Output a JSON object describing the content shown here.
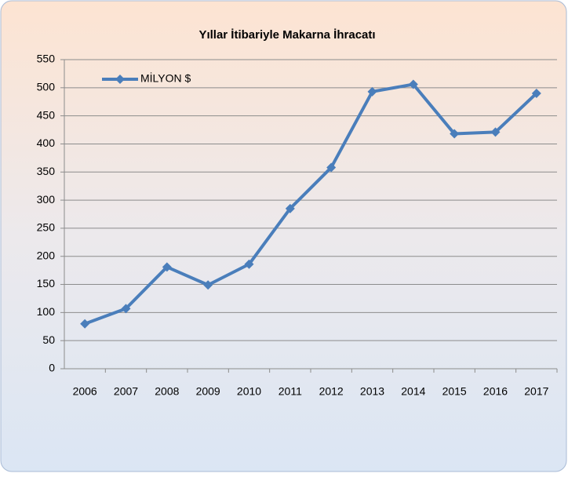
{
  "chart_data": {
    "type": "line",
    "title": "Yıllar İtibariyle Makarna İhracatı",
    "categories": [
      "2006",
      "2007",
      "2008",
      "2009",
      "2010",
      "2011",
      "2012",
      "2013",
      "2014",
      "2015",
      "2016",
      "2017"
    ],
    "series": [
      {
        "name": "MİLYON $",
        "color": "#4a7ebb",
        "values": [
          80,
          107,
          181,
          149,
          186,
          285,
          358,
          493,
          506,
          418,
          421,
          490
        ]
      }
    ],
    "ylim": [
      0,
      550
    ],
    "yticks": [
      0,
      50,
      100,
      150,
      200,
      250,
      300,
      350,
      400,
      450,
      500,
      550
    ],
    "grid": true,
    "legend": "top-left"
  }
}
